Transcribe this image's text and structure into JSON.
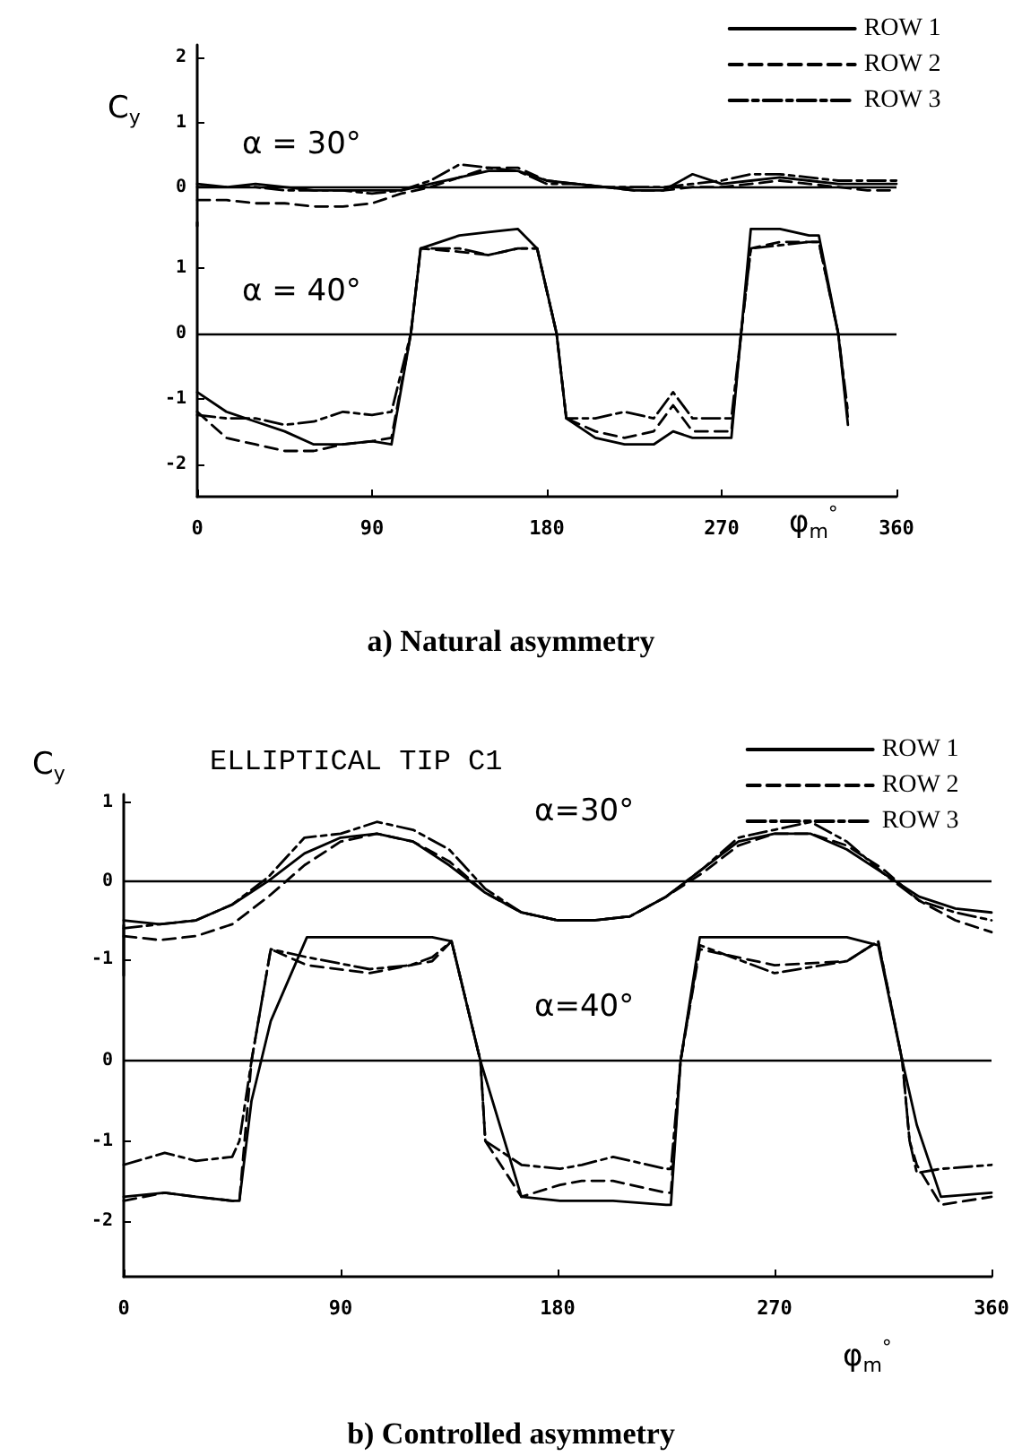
{
  "chart_data": [
    {
      "type": "line",
      "subtitle": "α = 30°",
      "ylabel": "C$_{y}$",
      "legend": "top right",
      "marker": "none",
      "tick_labels": "y",
      "x": [
        0,
        15,
        30,
        45,
        60,
        75,
        90,
        105,
        120,
        135,
        150,
        165,
        180,
        195,
        210,
        225,
        240,
        255,
        270,
        285,
        300,
        315,
        330,
        345,
        360
      ],
      "xlim": [
        0,
        360
      ],
      "xticks": [
        0,
        90,
        180,
        270,
        360
      ],
      "ylim": [
        -0.6,
        2.2
      ],
      "yticks": [
        0,
        1,
        2
      ],
      "ref_lines": [
        {
          "axis": "y",
          "value": 0
        }
      ],
      "series": [
        {
          "name": "ROW 1",
          "color": "#000000",
          "line_style": "solid",
          "values": [
            0.05,
            0.0,
            0.05,
            0.0,
            -0.05,
            -0.05,
            -0.05,
            -0.05,
            0.05,
            0.15,
            0.25,
            0.25,
            0.1,
            0.05,
            0.0,
            -0.05,
            -0.05,
            0.2,
            0.05,
            0.1,
            0.15,
            0.1,
            0.05,
            0.05,
            0.05
          ]
        },
        {
          "name": "ROW 2",
          "color": "#000000",
          "line_style": "dashed",
          "values": [
            -0.2,
            -0.2,
            -0.25,
            -0.25,
            -0.3,
            -0.3,
            -0.25,
            -0.1,
            0.0,
            0.15,
            0.3,
            0.3,
            0.1,
            0.05,
            0.0,
            -0.05,
            -0.05,
            0.0,
            0.0,
            0.05,
            0.1,
            0.05,
            0.0,
            -0.05,
            -0.05
          ]
        },
        {
          "name": "ROW 3",
          "color": "#000000",
          "line_style": "dashdot",
          "values": [
            0.0,
            0.0,
            0.0,
            -0.05,
            -0.05,
            -0.05,
            -0.1,
            -0.05,
            0.1,
            0.35,
            0.3,
            0.25,
            0.05,
            0.05,
            0.0,
            0.0,
            0.0,
            0.05,
            0.1,
            0.2,
            0.2,
            0.15,
            0.1,
            0.1,
            0.1
          ]
        }
      ]
    },
    {
      "type": "line",
      "title": "a) Natural asymmetry",
      "subtitle": "α = 40°",
      "xlabel": "φ$_{m}$$^{°}$",
      "marker": "none",
      "x": [
        0,
        15,
        30,
        45,
        60,
        75,
        90,
        100,
        110,
        115,
        135,
        150,
        165,
        175,
        185,
        190,
        205,
        220,
        235,
        245,
        255,
        265,
        275,
        280,
        285,
        300,
        315,
        320,
        330,
        335
      ],
      "xlim": [
        0,
        360
      ],
      "xticks": [
        0,
        90,
        180,
        270,
        360
      ],
      "ylim": [
        -2.5,
        1.7
      ],
      "yticks": [
        -2,
        -1,
        0,
        1
      ],
      "ref_lines": [
        {
          "axis": "y",
          "value": 0
        }
      ],
      "series": [
        {
          "color": "#000000",
          "line_style": "solid",
          "values": [
            -0.9,
            -1.2,
            -1.35,
            -1.5,
            -1.7,
            -1.7,
            -1.65,
            -1.7,
            0,
            1.3,
            1.5,
            1.55,
            1.6,
            1.3,
            0,
            -1.3,
            -1.6,
            -1.7,
            -1.7,
            -1.5,
            -1.6,
            -1.6,
            -1.6,
            0,
            1.6,
            1.6,
            1.5,
            1.5,
            0,
            -1.4
          ]
        },
        {
          "color": "#000000",
          "line_style": "dashed",
          "values": [
            -1.2,
            -1.6,
            -1.7,
            -1.8,
            -1.8,
            -1.7,
            -1.65,
            -1.6,
            0,
            1.3,
            1.25,
            1.2,
            1.3,
            1.3,
            0,
            -1.3,
            -1.5,
            -1.6,
            -1.5,
            -1.1,
            -1.5,
            -1.5,
            -1.5,
            0,
            1.3,
            1.4,
            1.4,
            1.4,
            0,
            -1.3
          ]
        },
        {
          "color": "#000000",
          "line_style": "dashdot",
          "values": [
            -1.25,
            -1.3,
            -1.3,
            -1.4,
            -1.35,
            -1.2,
            -1.25,
            -1.2,
            0,
            1.3,
            1.3,
            1.2,
            1.3,
            1.3,
            0,
            -1.3,
            -1.3,
            -1.2,
            -1.3,
            -0.9,
            -1.3,
            -1.3,
            -1.3,
            0,
            1.3,
            1.35,
            1.4,
            1.4,
            0,
            -1.2
          ]
        }
      ]
    },
    {
      "type": "line",
      "title": "ELLIPTICAL TIP C1",
      "subtitle": "α=30°",
      "ylabel": "C$_{y}$",
      "legend": "top right",
      "marker": "none",
      "tick_labels": "y",
      "x": [
        0,
        15,
        30,
        45,
        60,
        75,
        90,
        105,
        120,
        135,
        150,
        165,
        180,
        195,
        210,
        225,
        240,
        255,
        270,
        285,
        300,
        315,
        330,
        345,
        360
      ],
      "xlim": [
        0,
        360
      ],
      "xticks": [
        0,
        90,
        180,
        270,
        360
      ],
      "ylim": [
        -1.2,
        1.1
      ],
      "yticks": [
        -1,
        0,
        1
      ],
      "ref_lines": [
        {
          "axis": "y",
          "value": 0
        }
      ],
      "series": [
        {
          "name": "ROW 1",
          "color": "#000000",
          "line_style": "solid",
          "values": [
            -0.5,
            -0.55,
            -0.5,
            -0.3,
            0,
            0.35,
            0.55,
            0.6,
            0.5,
            0.2,
            -0.15,
            -0.4,
            -0.5,
            -0.5,
            -0.45,
            -0.2,
            0.15,
            0.5,
            0.6,
            0.6,
            0.4,
            0.1,
            -0.2,
            -0.35,
            -0.4
          ]
        },
        {
          "name": "ROW 2",
          "color": "#000000",
          "line_style": "dashed",
          "values": [
            -0.7,
            -0.75,
            -0.7,
            -0.55,
            -0.2,
            0.2,
            0.5,
            0.6,
            0.5,
            0.25,
            -0.15,
            -0.4,
            -0.5,
            -0.5,
            -0.45,
            -0.2,
            0.1,
            0.45,
            0.6,
            0.6,
            0.45,
            0.15,
            -0.25,
            -0.5,
            -0.65
          ]
        },
        {
          "name": "ROW 3",
          "color": "#000000",
          "line_style": "dashdot",
          "values": [
            -0.6,
            -0.55,
            -0.5,
            -0.3,
            0.05,
            0.55,
            0.6,
            0.75,
            0.65,
            0.4,
            -0.1,
            -0.4,
            -0.5,
            -0.5,
            -0.45,
            -0.2,
            0.15,
            0.55,
            0.65,
            0.75,
            0.5,
            0.1,
            -0.25,
            -0.4,
            -0.5
          ]
        }
      ]
    },
    {
      "type": "line",
      "title": "b) Controlled asymmetry",
      "subtitle": "α=40°",
      "xlabel": "φ$_{m}$$^{°}$",
      "marker": "none",
      "x": [
        0,
        17,
        30,
        45,
        48,
        53,
        61,
        76,
        102,
        119,
        128,
        136,
        148,
        150,
        165,
        181,
        190,
        203,
        225,
        227,
        231,
        239,
        270,
        300,
        313,
        323,
        326,
        329,
        339,
        360
      ],
      "xlim": [
        0,
        360
      ],
      "xticks": [
        0,
        90,
        180,
        270,
        360
      ],
      "ylim": [
        -2.7,
        1.7
      ],
      "yticks": [
        -2,
        -1,
        0
      ],
      "ref_lines": [
        {
          "axis": "y",
          "value": 0
        }
      ],
      "series": [
        {
          "color": "#000000",
          "line_style": "solid",
          "values": [
            -1.7,
            -1.65,
            -1.7,
            -1.75,
            -1.75,
            -0.5,
            0.5,
            1.55,
            1.55,
            1.55,
            1.55,
            1.5,
            0,
            -0.2,
            -1.7,
            -1.75,
            -1.75,
            -1.75,
            -1.8,
            -1.8,
            0,
            1.55,
            1.55,
            1.55,
            1.45,
            0,
            -0.4,
            -0.8,
            -1.7,
            -1.65
          ]
        },
        {
          "color": "#000000",
          "line_style": "dashed",
          "values": [
            -1.75,
            -1.65,
            -1.7,
            -1.75,
            -1.75,
            0,
            1.4,
            1.2,
            1.1,
            1.2,
            1.25,
            1.5,
            0,
            -1,
            -1.7,
            -1.55,
            -1.5,
            -1.5,
            -1.65,
            -1.65,
            0,
            1.4,
            1.2,
            1.25,
            1.5,
            0,
            -1,
            -1.3,
            -1.8,
            -1.7
          ]
        },
        {
          "color": "#000000",
          "line_style": "dashdot",
          "values": [
            -1.3,
            -1.15,
            -1.25,
            -1.2,
            -1.0,
            0,
            1.4,
            1.3,
            1.15,
            1.2,
            1.3,
            1.5,
            0,
            -1,
            -1.3,
            -1.35,
            -1.3,
            -1.2,
            -1.35,
            -1.35,
            0,
            1.45,
            1.1,
            1.25,
            1.5,
            0,
            -1,
            -1.4,
            -1.35,
            -1.3
          ]
        }
      ]
    }
  ]
}
